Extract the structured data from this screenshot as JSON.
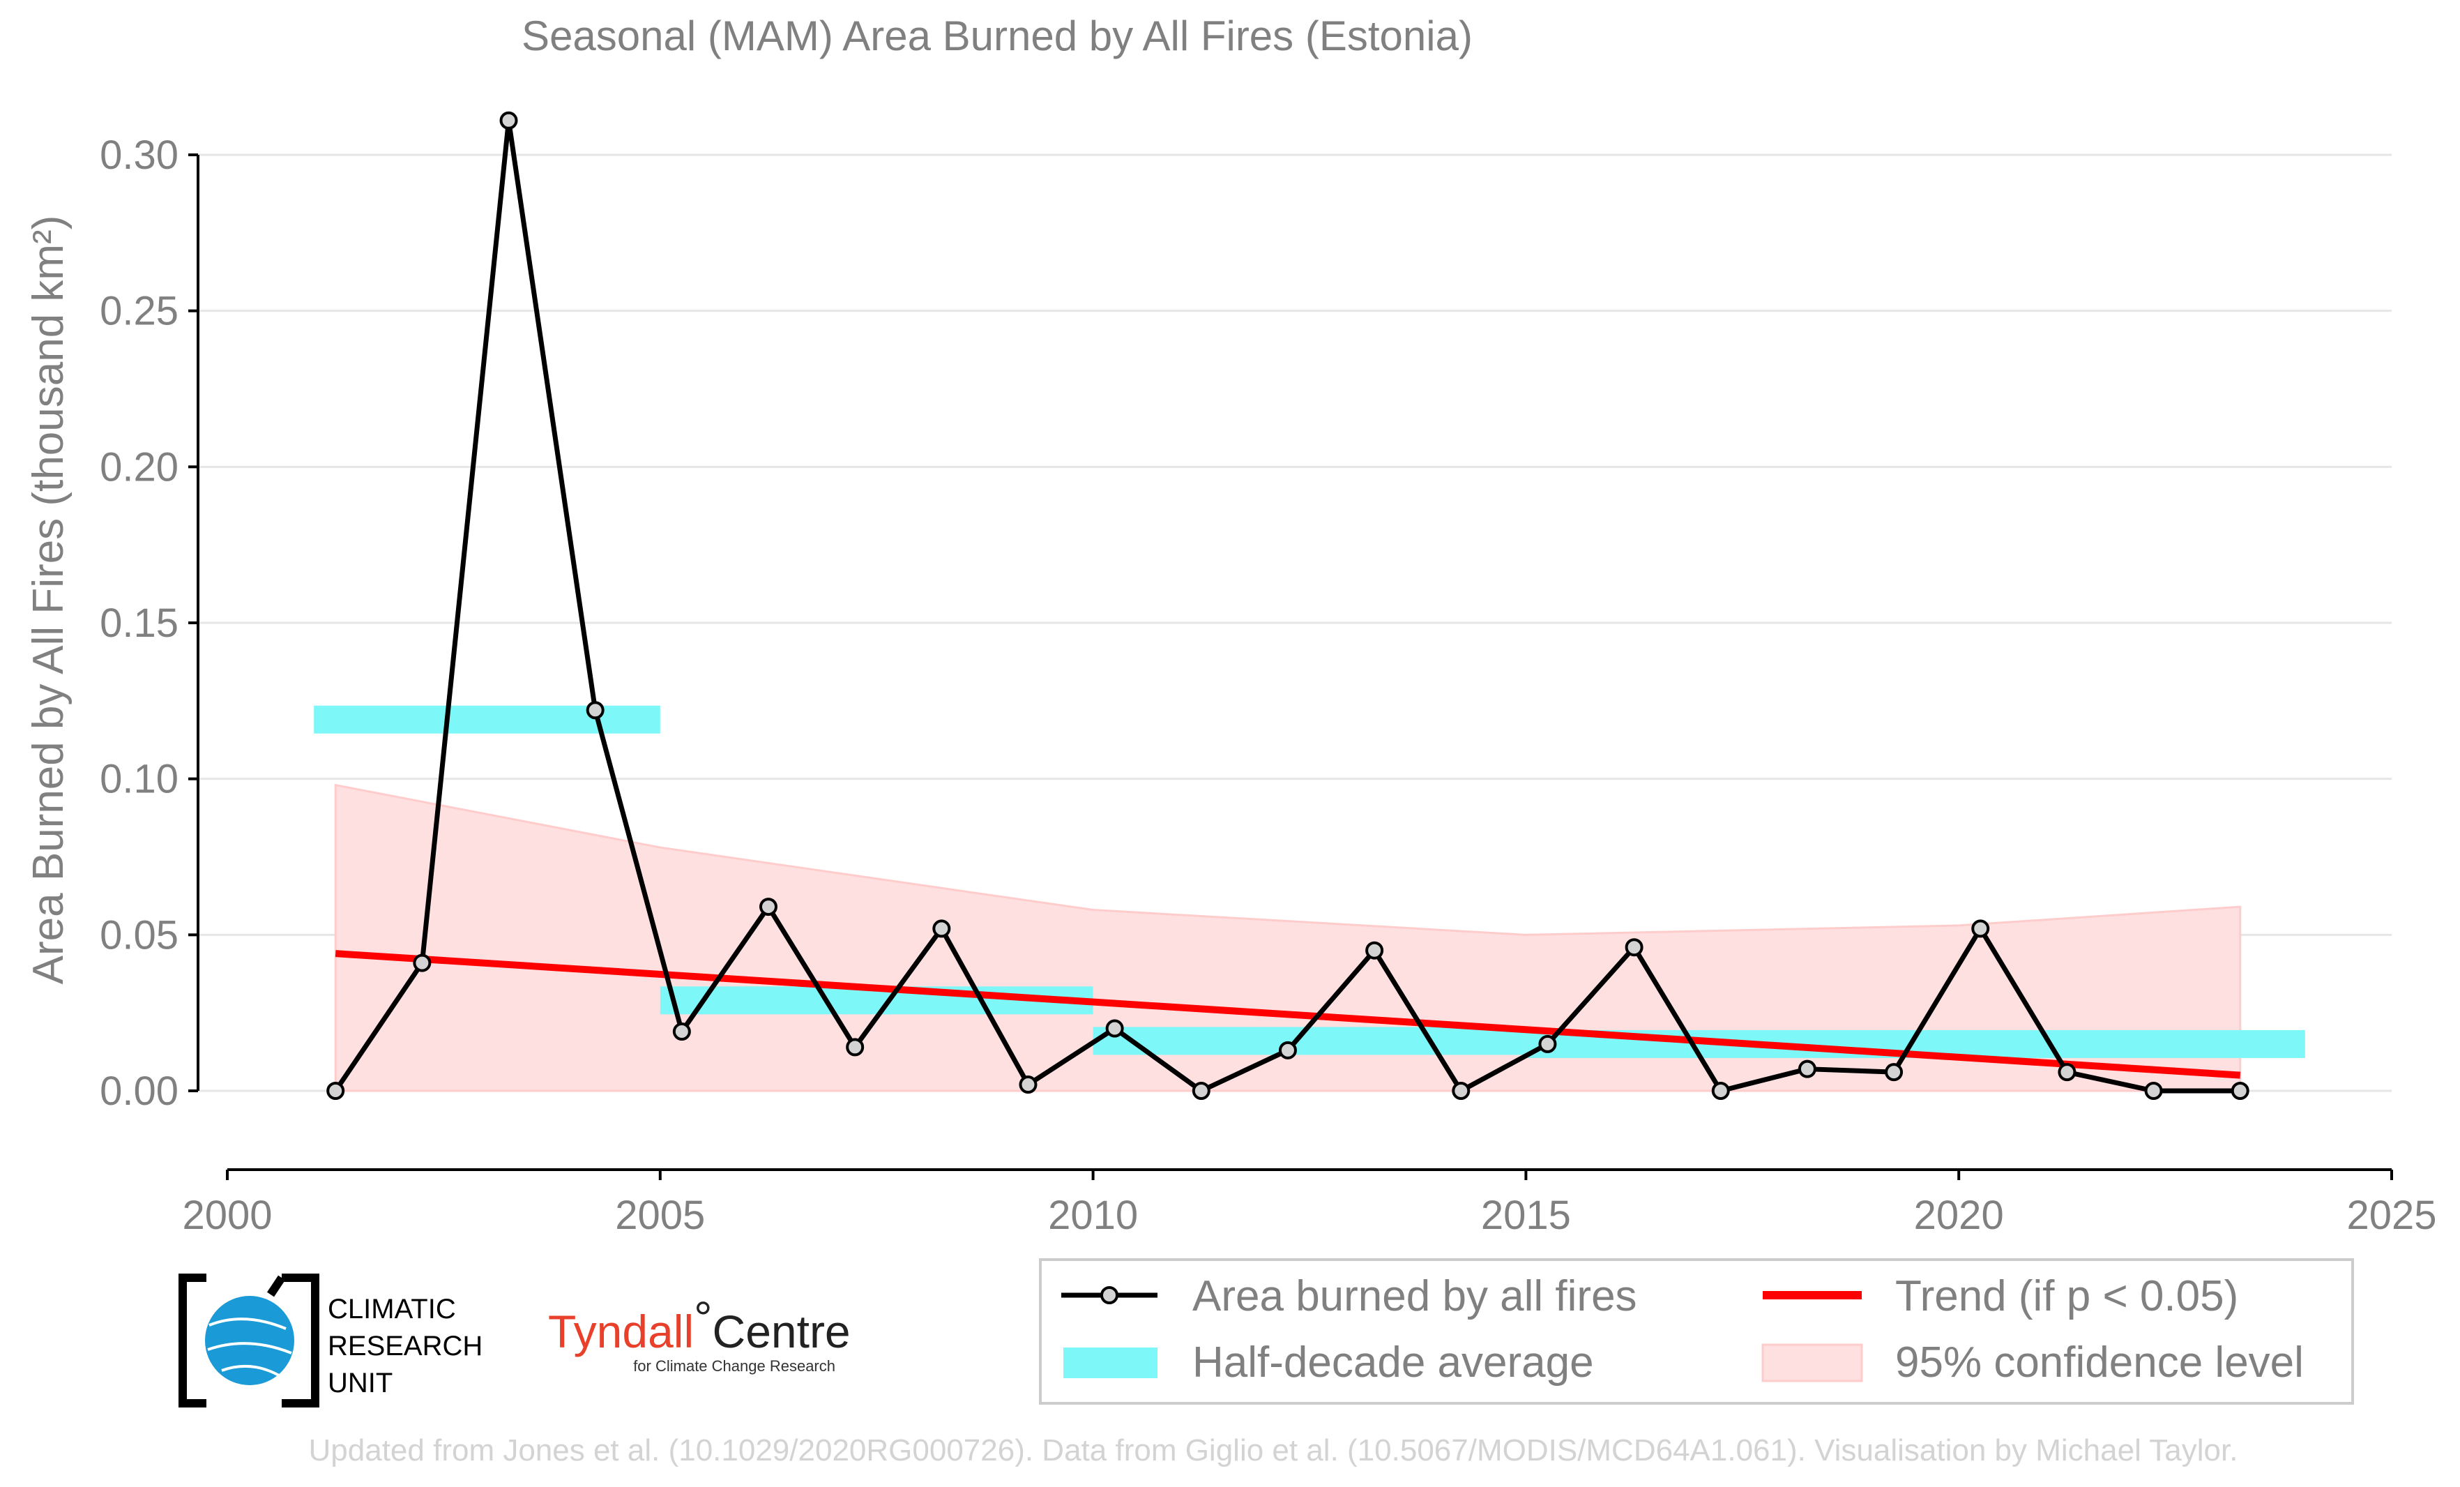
{
  "chart_data": {
    "type": "line",
    "title": "Seasonal (MAM) Area Burned by All Fires (Estonia)",
    "ylabel": "Area Burned by All Fires (thousand km²)",
    "xlabel": "",
    "xlim": [
      2000,
      2025
    ],
    "ylim": [
      -0.0175,
      0.3175
    ],
    "x_ticks": [
      2000,
      2005,
      2010,
      2015,
      2020,
      2025
    ],
    "y_ticks": [
      0.0,
      0.05,
      0.1,
      0.15,
      0.2,
      0.25,
      0.3
    ],
    "y_tick_labels": [
      "0.00",
      "0.05",
      "0.10",
      "0.15",
      "0.20",
      "0.25",
      "0.30"
    ],
    "grid": "horizontal",
    "series": [
      {
        "name": "Area burned by all fires",
        "x": [
          2001.25,
          2002.25,
          2003.25,
          2004.25,
          2005.25,
          2006.25,
          2007.25,
          2008.25,
          2009.25,
          2010.25,
          2011.25,
          2012.25,
          2013.25,
          2014.25,
          2015.25,
          2016.25,
          2017.25,
          2018.25,
          2019.25,
          2020.25,
          2021.25,
          2022.25,
          2023.25
        ],
        "values": [
          0.0,
          0.041,
          0.311,
          0.122,
          0.019,
          0.059,
          0.014,
          0.052,
          0.002,
          0.02,
          0.0,
          0.013,
          0.045,
          0.0,
          0.015,
          0.046,
          0.0,
          0.007,
          0.006,
          0.052,
          0.006,
          0.0,
          0.0
        ],
        "color": "#000000",
        "marker_fill": "#d3d3d3"
      }
    ],
    "half_decade_average": {
      "name": "Half-decade average",
      "color": "#7df7f7",
      "segments": [
        {
          "x_start": 2001.0,
          "x_end": 2005.0,
          "value": 0.119
        },
        {
          "x_start": 2005.0,
          "x_end": 2010.0,
          "value": 0.029
        },
        {
          "x_start": 2010.0,
          "x_end": 2015.0,
          "value": 0.016
        },
        {
          "x_start": 2015.0,
          "x_end": 2024.0,
          "value": 0.015
        }
      ]
    },
    "trend": {
      "name": "Trend (if p < 0.05)",
      "color": "#ff0000",
      "x": [
        2001.25,
        2023.25
      ],
      "values": [
        0.044,
        0.005
      ]
    },
    "confidence_band": {
      "name": "95% confidence level",
      "color": "#ffe0e0",
      "x": [
        2001.25,
        2005.0,
        2010.0,
        2015.0,
        2020.0,
        2023.25
      ],
      "upper": [
        0.098,
        0.078,
        0.058,
        0.05,
        0.053,
        0.059
      ],
      "lower": [
        0.0,
        0.0,
        0.0,
        0.0,
        0.0,
        0.0
      ]
    },
    "legend": {
      "placement": "bottom-right",
      "entries": [
        "Area burned by all fires",
        "Trend (if p < 0.05)",
        "Half-decade average",
        "95% confidence level"
      ]
    }
  },
  "logos": {
    "cru": [
      "CLIMATIC",
      "RESEARCH",
      "UNIT"
    ],
    "tyndall_main": "Tyndall",
    "tyndall_degree": "°",
    "tyndall_centre": "Centre",
    "tyndall_sub": "for Climate Change Research"
  },
  "footer": "Updated from Jones et al. (10.1029/2020RG000726). Data from Giglio et al. (10.5067/MODIS/MCD64A1.061). Visualisation by Michael Taylor."
}
